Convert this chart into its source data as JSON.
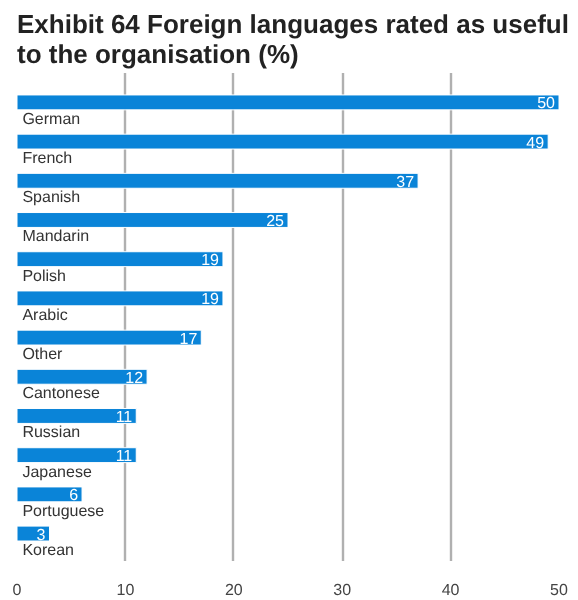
{
  "chart_data": {
    "type": "bar",
    "orientation": "horizontal",
    "title": "Exhibit 64 Foreign languages rated as useful to the organisation (%)",
    "categories": [
      "German",
      "French",
      "Spanish",
      "Mandarin",
      "Polish",
      "Arabic",
      "Other",
      "Cantonese",
      "Russian",
      "Japanese",
      "Portuguese",
      "Korean"
    ],
    "values": [
      50,
      49,
      37,
      25,
      19,
      19,
      17,
      12,
      11,
      11,
      6,
      3
    ],
    "color": "#0a84d8",
    "xlim": [
      0,
      50
    ],
    "xticks": [
      0,
      10,
      20,
      30,
      40,
      50
    ],
    "grid": "x",
    "data_labels": true
  }
}
